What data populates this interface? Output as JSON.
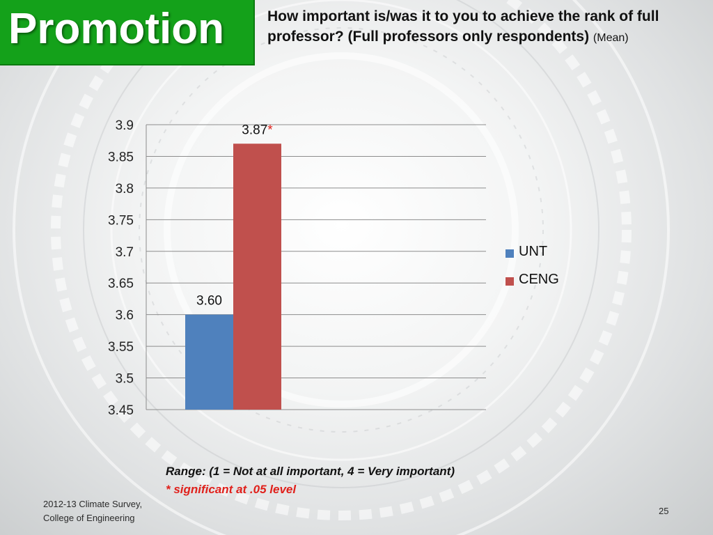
{
  "slide": {
    "section": "Promotion",
    "question": "How important is/was it to you to achieve the rank of full professor? (Full professors only respondents)",
    "question_suffix": "(Mean)",
    "range_note": "Range: (1 = Not at all important, 4 = Very important)",
    "significance_note": "* significant at .05 level",
    "footer_line1": "2012-13 Climate Survey,",
    "footer_line2": "College of Engineering",
    "page_number": "25"
  },
  "colors": {
    "section_green": "#14a11a",
    "unt_blue": "#4f81bd",
    "ceng_red": "#c0504d",
    "significance_red": "#e0201b"
  },
  "chart_data": {
    "type": "bar",
    "categories": [
      ""
    ],
    "series": [
      {
        "name": "UNT",
        "values": [
          3.6
        ],
        "data_labels": [
          "3.60"
        ],
        "color": "#4f81bd"
      },
      {
        "name": "CENG",
        "values": [
          3.87
        ],
        "data_labels": [
          "3.87"
        ],
        "color": "#c0504d",
        "significance_marker": "*"
      }
    ],
    "ylim": [
      3.45,
      3.9
    ],
    "yticks": [
      "3.9",
      "3.85",
      "3.8",
      "3.75",
      "3.7",
      "3.65",
      "3.6",
      "3.55",
      "3.5",
      "3.45"
    ],
    "grid": true,
    "legend_position": "right"
  }
}
